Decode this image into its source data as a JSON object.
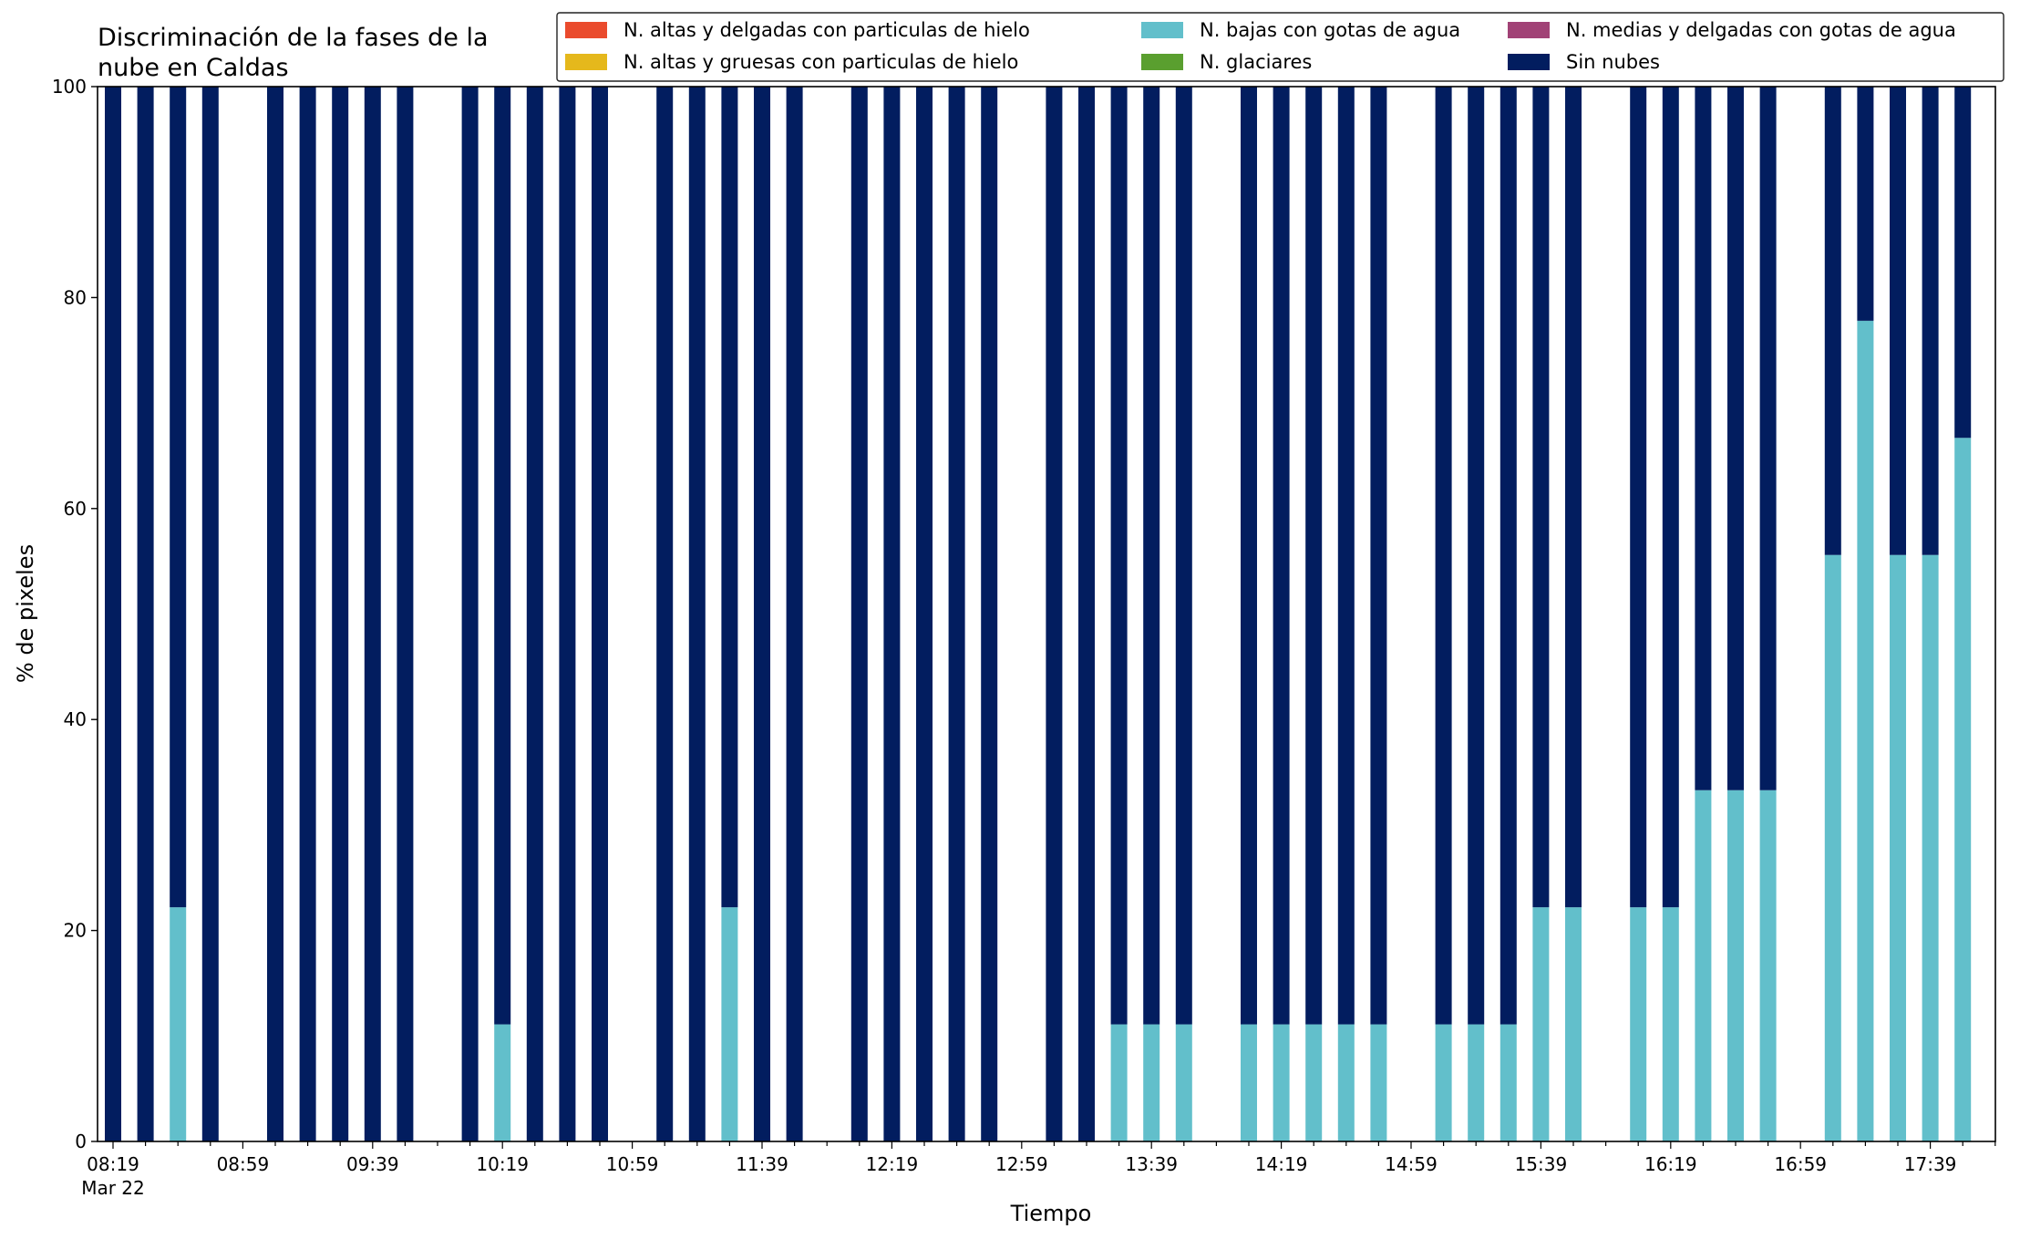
{
  "chart_data": {
    "type": "bar",
    "stacked": true,
    "title_line1": "Discriminación de la fases de la",
    "title_line2": "nube en Caldas",
    "xlabel": "Tiempo",
    "ylabel": "% de pixeles",
    "ylim": [
      0,
      100
    ],
    "y_ticks": [
      0,
      20,
      40,
      60,
      80,
      100
    ],
    "x_tick_labels": [
      "08:19",
      "08:59",
      "09:39",
      "10:19",
      "10:59",
      "11:39",
      "12:19",
      "12:59",
      "13:39",
      "14:19",
      "14:59",
      "15:39",
      "16:19",
      "16:59",
      "17:39"
    ],
    "x_date_label": "Mar 22",
    "x_start": "08:19",
    "x_interval_minutes": 10,
    "x_slots": 59,
    "grid": false,
    "legend_position": "top-right",
    "legend": [
      {
        "name": "N. altas y delgadas con particulas de hielo",
        "color": "#ea4b2d"
      },
      {
        "name": "N. altas y gruesas con particulas de hielo",
        "color": "#e5b81c"
      },
      {
        "name": "N. bajas con gotas de agua",
        "color": "#62bfcb"
      },
      {
        "name": "N. glaciares",
        "color": "#5a9f2f"
      },
      {
        "name": "N. medias y delgadas con gotas de agua",
        "color": "#a14276"
      },
      {
        "name": "Sin nubes",
        "color": "#021d5f"
      }
    ],
    "categories": [
      "08:19",
      "08:29",
      "08:39",
      "08:49",
      "09:09",
      "09:19",
      "09:29",
      "09:39",
      "09:49",
      "10:09",
      "10:19",
      "10:29",
      "10:39",
      "10:49",
      "11:09",
      "11:19",
      "11:29",
      "11:39",
      "11:49",
      "12:09",
      "12:19",
      "12:29",
      "12:39",
      "12:49",
      "13:09",
      "13:19",
      "13:29",
      "13:39",
      "13:49",
      "14:09",
      "14:19",
      "14:29",
      "14:39",
      "14:49",
      "15:09",
      "15:19",
      "15:29",
      "15:39",
      "15:49",
      "16:09",
      "16:19",
      "16:29",
      "16:39",
      "16:49",
      "17:09",
      "17:19",
      "17:29",
      "17:39",
      "17:49"
    ],
    "series": [
      {
        "name": "N. bajas con gotas de agua",
        "color": "#62bfcb",
        "values": [
          0,
          0,
          22.2,
          0,
          0,
          0,
          0,
          0,
          0,
          0,
          11.1,
          0,
          0,
          0,
          0,
          0,
          22.2,
          0,
          0,
          0,
          0,
          0,
          0,
          0,
          0,
          0,
          11.1,
          11.1,
          11.1,
          11.1,
          11.1,
          11.1,
          11.1,
          11.1,
          11.1,
          11.1,
          11.1,
          22.2,
          22.2,
          22.2,
          22.2,
          33.3,
          33.3,
          33.3,
          55.6,
          77.8,
          55.6,
          55.6,
          66.7
        ]
      },
      {
        "name": "Sin nubes",
        "color": "#021d5f",
        "values": [
          100,
          100,
          77.8,
          100,
          100,
          100,
          100,
          100,
          100,
          100,
          88.9,
          100,
          100,
          100,
          100,
          100,
          77.8,
          100,
          100,
          100,
          100,
          100,
          100,
          100,
          100,
          100,
          88.9,
          88.9,
          88.9,
          88.9,
          88.9,
          88.9,
          88.9,
          88.9,
          88.9,
          88.9,
          88.9,
          77.8,
          77.8,
          77.8,
          77.8,
          66.7,
          66.7,
          66.7,
          44.4,
          22.2,
          44.4,
          44.4,
          33.3
        ]
      }
    ]
  }
}
